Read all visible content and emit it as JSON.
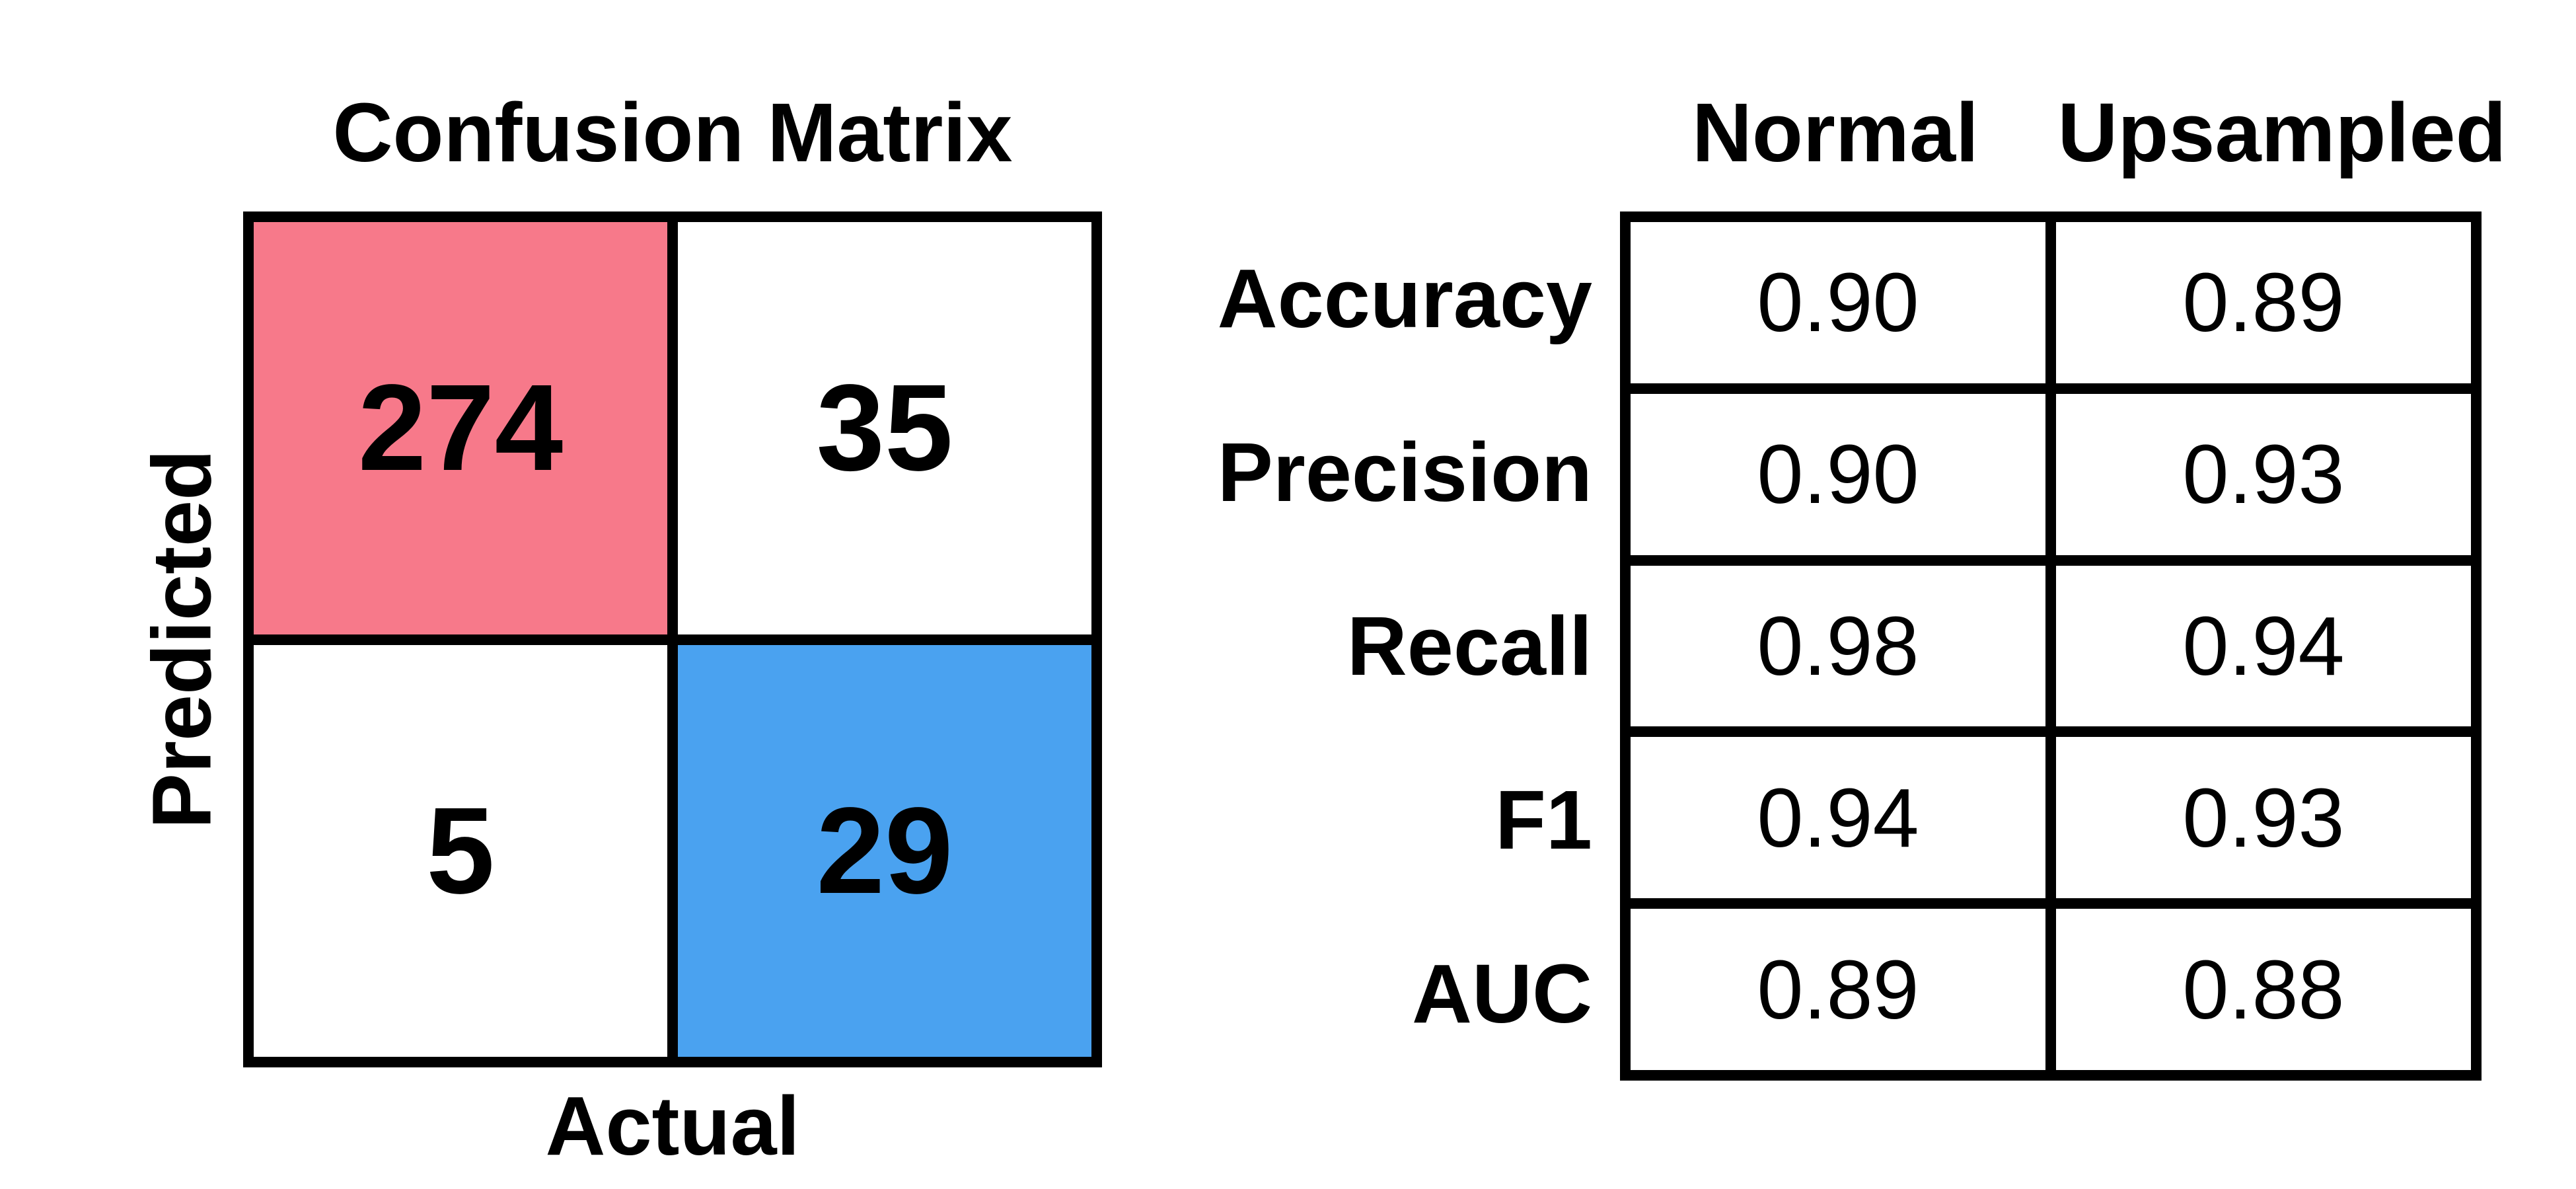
{
  "chart_data": [
    {
      "type": "heatmap",
      "title": "Confusion Matrix",
      "xlabel": "Actual",
      "ylabel": "Predicted",
      "cells": [
        {
          "row": 0,
          "col": 0,
          "value": "274",
          "color": "#f7798a"
        },
        {
          "row": 0,
          "col": 1,
          "value": "35",
          "color": "#ffffff"
        },
        {
          "row": 1,
          "col": 0,
          "value": "5",
          "color": "#ffffff"
        },
        {
          "row": 1,
          "col": 1,
          "value": "29",
          "color": "#4aa2f0"
        }
      ]
    },
    {
      "type": "table",
      "columns": [
        "Normal",
        "Upsampled"
      ],
      "rows": [
        {
          "label": "Accuracy",
          "values": [
            "0.90",
            "0.89"
          ]
        },
        {
          "label": "Precision",
          "values": [
            "0.90",
            "0.93"
          ]
        },
        {
          "label": "Recall",
          "values": [
            "0.98",
            "0.94"
          ]
        },
        {
          "label": "F1",
          "values": [
            "0.94",
            "0.93"
          ]
        },
        {
          "label": "AUC",
          "values": [
            "0.89",
            "0.88"
          ]
        }
      ]
    }
  ]
}
